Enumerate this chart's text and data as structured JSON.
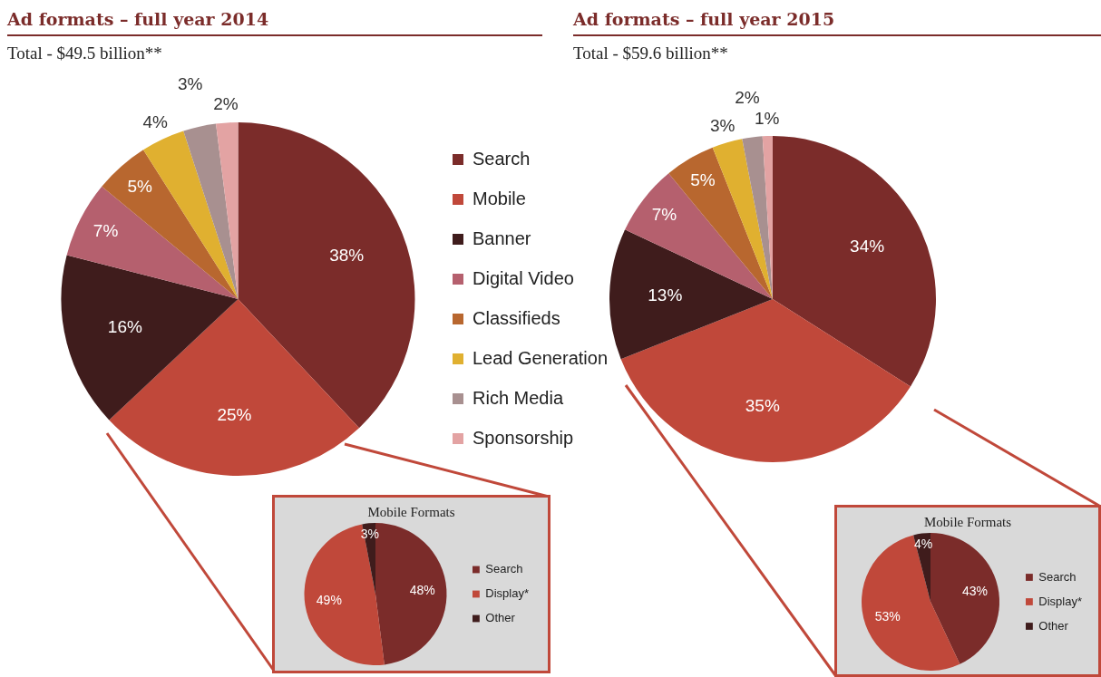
{
  "chart_data": [
    {
      "type": "pie",
      "title": "Ad formats – full year 2014",
      "subtitle": "Total - $49.5 billion**",
      "categories": [
        "Search",
        "Mobile",
        "Banner",
        "Digital Video",
        "Classifieds",
        "Lead Generation",
        "Rich Media",
        "Sponsorship"
      ],
      "values": [
        38,
        25,
        16,
        7,
        5,
        4,
        3,
        2
      ],
      "colors": [
        "#7b2c2a",
        "#c0483a",
        "#3f1c1c",
        "#b5606e",
        "#b8672f",
        "#e0b030",
        "#a89090",
        "#e3a3a3"
      ],
      "value_labels": [
        "38%",
        "25%",
        "16%",
        "7%",
        "5%",
        "4%",
        "3%",
        "2%"
      ],
      "legend": "right"
    },
    {
      "type": "pie",
      "title": "Ad formats – full year 2015",
      "subtitle": "Total - $59.6 billion**",
      "categories": [
        null,
        null,
        null,
        null,
        null,
        null,
        null,
        null
      ],
      "values": [
        34,
        35,
        13,
        7,
        5,
        3,
        2,
        1
      ],
      "colors": [
        "#7b2c2a",
        "#c0483a",
        "#3f1c1c",
        "#b5606e",
        "#b8672f",
        "#e0b030",
        "#a89090",
        "#e3a3a3"
      ],
      "value_labels": [
        "34%",
        "35%",
        "13%",
        "7%",
        "5%",
        "3%",
        "2%",
        "1%"
      ]
    },
    {
      "type": "pie",
      "title": "Mobile Formats",
      "categories": [
        "Search",
        "Display*",
        "Other"
      ],
      "values": [
        48,
        49,
        3
      ],
      "colors": [
        "#7b2c2a",
        "#c0483a",
        "#3f1c1c"
      ],
      "value_labels": [
        "48%",
        "49%",
        "3%"
      ],
      "legend": "right"
    },
    {
      "type": "pie",
      "title": "Mobile Formats",
      "categories": [
        "Search",
        "Display*",
        "Other"
      ],
      "values": [
        43,
        53,
        4
      ],
      "colors": [
        "#7b2c2a",
        "#c0483a",
        "#3f1c1c"
      ],
      "value_labels": [
        "43%",
        "53%",
        "4%"
      ],
      "legend": "right"
    }
  ]
}
